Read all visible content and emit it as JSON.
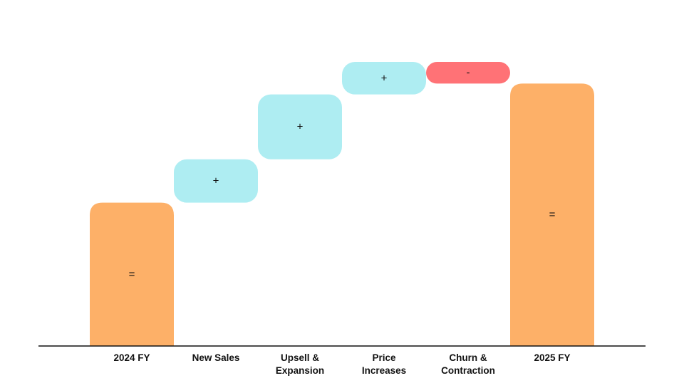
{
  "chart_data": {
    "type": "bar",
    "subtype": "waterfall",
    "title": "",
    "xlabel": "",
    "ylabel": "",
    "grid": false,
    "legend": "none",
    "ylim": [
      0,
      100
    ],
    "categories": [
      [
        "2024 FY"
      ],
      [
        "New Sales"
      ],
      [
        "Upsell &",
        "Expansion"
      ],
      [
        "Price",
        "Increases"
      ],
      [
        "Churn &",
        "Contraction"
      ],
      [
        "2025 FY"
      ]
    ],
    "steps": [
      {
        "kind": "total",
        "sign": "=",
        "start": 0,
        "end": 53
      },
      {
        "kind": "increase",
        "sign": "+",
        "start": 53,
        "end": 69
      },
      {
        "kind": "increase",
        "sign": "+",
        "start": 69,
        "end": 93
      },
      {
        "kind": "increase",
        "sign": "+",
        "start": 93,
        "end": 105
      },
      {
        "kind": "decrease",
        "sign": "-",
        "start": 105,
        "end": 97
      },
      {
        "kind": "total",
        "sign": "=",
        "start": 0,
        "end": 97
      }
    ],
    "colors": {
      "total": "#FDB068",
      "increase": "#AEEDF2",
      "decrease": "#FF7276",
      "axis": "#111111"
    }
  }
}
